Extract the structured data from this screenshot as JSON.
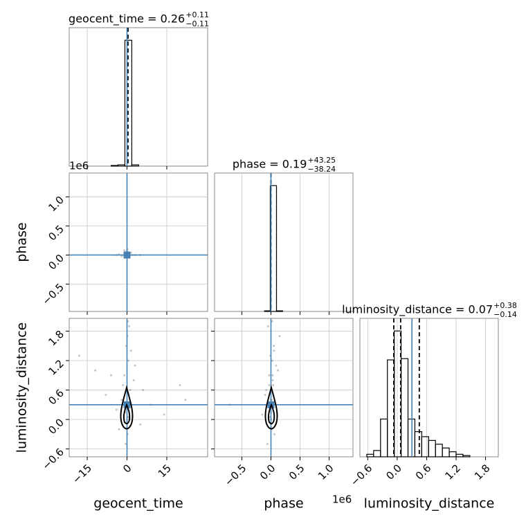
{
  "chart_data": {
    "type": "corner",
    "truth_color": "#4682b4",
    "grid": true,
    "offset_label": "1e6",
    "parameters": [
      {
        "name": "geocent_time",
        "lim": [
          -21.8,
          30.4
        ],
        "ticks": [
          {
            "value": -15,
            "label": "−15"
          },
          0,
          15
        ],
        "truth": 0
      },
      {
        "name": "phase",
        "lim": [
          -0.97,
          1.41
        ],
        "ticks": [
          {
            "value": -0.5,
            "label": "−0.5"
          },
          {
            "value": 0,
            "label": "0.0"
          },
          0.5,
          {
            "value": 1,
            "label": "1.0"
          }
        ],
        "truth": 0
      },
      {
        "name": "luminosity_distance",
        "lim": [
          -0.76,
          2.06
        ],
        "ticks": [
          {
            "value": -0.6,
            "label": "−0.6"
          },
          {
            "value": 0,
            "label": "0.0"
          },
          0.6,
          1.2,
          1.8
        ],
        "truth": 0.3
      }
    ],
    "histograms": [
      {
        "title": "geocent_time = 0.26",
        "upper": "+0.11",
        "lower": "−0.11",
        "quantiles": [
          0.15,
          0.26,
          0.37
        ],
        "bins": [
          -6.0,
          -3.4,
          -0.8,
          1.8,
          4.4
        ],
        "counts": [
          0.005,
          0.01,
          1,
          0.01
        ],
        "ylim": [
          0,
          1.1
        ]
      },
      {
        "title": "phase = 0.19",
        "upper": "+43.25",
        "lower": "−38.24",
        "quantiles": [
          -3.8e-05,
          1.9e-07,
          4.3e-05
        ],
        "bins": [
          -0.11,
          -0.012,
          0.095,
          0.2
        ],
        "counts": [
          0.005,
          1,
          0.005
        ],
        "ylim": [
          0,
          1.1
        ]
      },
      {
        "title": "luminosity_distance = 0.07",
        "upper": "+0.38",
        "lower": "−0.14",
        "quantiles": [
          -0.07,
          0.07,
          0.45
        ],
        "bins": [
          -0.62,
          -0.48,
          -0.34,
          -0.2,
          -0.06,
          0.08,
          0.22,
          0.36,
          0.5,
          0.64,
          0.78,
          0.92,
          1.06,
          1.2,
          1.34,
          1.48
        ],
        "counts": [
          0.02,
          0.05,
          0.3,
          0.77,
          1.0,
          0.78,
          0.3,
          0.2,
          0.16,
          0.13,
          0.1,
          0.07,
          0.04,
          0.02,
          0.01
        ],
        "ylim": [
          0,
          1.1
        ]
      }
    ],
    "scatters": [
      {
        "x": [
          0.3,
          -0.5,
          1,
          -1,
          2,
          -2,
          0.1,
          0.6,
          -0.2,
          3,
          -3,
          0.8,
          5,
          -4,
          1.5
        ],
        "y": [
          0.05,
          0.02,
          -0.01,
          0.08,
          0.0,
          -0.02,
          0.1,
          0.03,
          0.06,
          0.0,
          0.01,
          -0.03,
          0.0,
          0.0,
          0.04
        ]
      },
      {
        "x": [
          0.5,
          -1,
          1.2,
          -0.3,
          0.8,
          -2,
          2.5,
          -4,
          5,
          -8,
          9,
          -12,
          14,
          20,
          -18,
          0.2,
          -0.5,
          1,
          0.3,
          -0.2,
          3,
          -3,
          6,
          -6,
          0.1,
          0.4,
          -0.7,
          1.5,
          -1.5,
          22
        ],
        "y": [
          1.2,
          0.9,
          0.6,
          1.5,
          1.9,
          0.4,
          0.8,
          0.2,
          -0.1,
          0.5,
          0.3,
          1.0,
          0.1,
          0.7,
          1.3,
          -0.3,
          -0.5,
          0.0,
          2.0,
          0.3,
          1.1,
          -0.2,
          0.6,
          0.9,
          1.7,
          0.05,
          0.15,
          1.4,
          0.7,
          0.4
        ]
      },
      {
        "x": [
          0.02,
          -0.03,
          0.01,
          0.05,
          -0.05,
          0.0,
          0.03,
          -0.02,
          0.08,
          -0.1,
          -0.7,
          0.12,
          -0.15,
          0.04,
          -0.01,
          0.06,
          -0.06,
          0.0,
          0.02,
          -0.04,
          0.09,
          0.01,
          -0.08,
          0.03,
          0.15,
          -0.02,
          0.0,
          0.05,
          -0.03,
          0.01
        ],
        "y": [
          1.2,
          0.9,
          0.6,
          1.5,
          1.9,
          0.4,
          0.8,
          0.2,
          -0.1,
          0.5,
          0.3,
          1.0,
          0.1,
          0.7,
          1.3,
          -0.3,
          -0.5,
          0.0,
          2.0,
          0.3,
          1.1,
          -0.2,
          0.6,
          0.9,
          1.7,
          0.05,
          0.15,
          1.4,
          0.7,
          0.4
        ]
      }
    ]
  }
}
